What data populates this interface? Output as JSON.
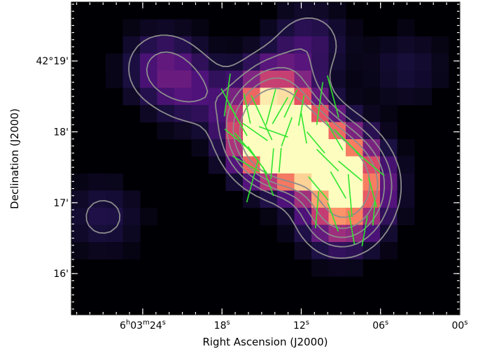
{
  "chart_data": {
    "type": "heatmap",
    "title": "",
    "xlabel": "Right Ascension (J2000)",
    "ylabel": "Declination (J2000)",
    "colormap": "magma",
    "x_ticks": [
      {
        "ra_seconds": 24,
        "label_main": "6",
        "label_h": "h",
        "label_mid": "03",
        "label_m": "m",
        "label_s_val": "24",
        "label_s": "s"
      },
      {
        "ra_seconds": 18,
        "label_main": "18",
        "label_s": "s"
      },
      {
        "ra_seconds": 12,
        "label_main": "12",
        "label_s": "s"
      },
      {
        "ra_seconds": 6,
        "label_main": "06",
        "label_s": "s"
      },
      {
        "ra_seconds": 0,
        "label_main": "00",
        "label_s": "s"
      }
    ],
    "y_ticks": [
      {
        "dec_arcmin": 19,
        "label": "42°19'"
      },
      {
        "dec_arcmin": 18,
        "label": "18'"
      },
      {
        "dec_arcmin": 17,
        "label": "17'"
      },
      {
        "dec_arcmin": 16,
        "label": "16'"
      }
    ],
    "xlim_ra_seconds": [
      29.4,
      0
    ],
    "ylim_dec_arcmin": [
      15.42,
      19.83
    ],
    "grid": false,
    "intensity_peaks": [
      {
        "ra_seconds": 13.5,
        "dec_arcmin": 17.82,
        "level": 1.0
      },
      {
        "ra_seconds": 12.3,
        "dec_arcmin": 17.82,
        "level": 0.92
      },
      {
        "ra_seconds": 14.7,
        "dec_arcmin": 18.05,
        "level": 0.78
      },
      {
        "ra_seconds": 8.4,
        "dec_arcmin": 17.25,
        "level": 0.8
      },
      {
        "ra_seconds": 9.6,
        "dec_arcmin": 17.6,
        "level": 0.68
      },
      {
        "ra_seconds": 13.9,
        "dec_arcmin": 18.55,
        "level": 0.5
      },
      {
        "ra_seconds": 9.0,
        "dec_arcmin": 16.8,
        "level": 0.45
      },
      {
        "ra_seconds": 22.5,
        "dec_arcmin": 18.9,
        "level": 0.28
      },
      {
        "ra_seconds": 11.4,
        "dec_arcmin": 19.25,
        "level": 0.2
      },
      {
        "ra_seconds": 4.0,
        "dec_arcmin": 18.9,
        "level": 0.12
      },
      {
        "ra_seconds": 27.0,
        "dec_arcmin": 16.8,
        "level": 0.15
      },
      {
        "ra_seconds": 20.0,
        "dec_arcmin": 18.55,
        "level": 0.2
      }
    ],
    "contour_color": "#8c8c8c",
    "polarization_vector_color": "#2ee62e",
    "polarization_vectors": [
      {
        "ra_seconds": 17.6,
        "dec_arcmin": 18.52,
        "angle_deg": 8,
        "length": 0.7
      },
      {
        "ra_seconds": 17.4,
        "dec_arcmin": 18.38,
        "angle_deg": -28,
        "length": 0.6
      },
      {
        "ra_seconds": 16.8,
        "dec_arcmin": 18.17,
        "angle_deg": -30,
        "length": 0.6
      },
      {
        "ra_seconds": 16.1,
        "dec_arcmin": 18.33,
        "angle_deg": -12,
        "length": 0.5
      },
      {
        "ra_seconds": 15.0,
        "dec_arcmin": 18.2,
        "angle_deg": -25,
        "length": 0.8
      },
      {
        "ra_seconds": 14.3,
        "dec_arcmin": 18.35,
        "angle_deg": 15,
        "length": 0.6
      },
      {
        "ra_seconds": 13.6,
        "dec_arcmin": 18.3,
        "angle_deg": 30,
        "length": 0.5
      },
      {
        "ra_seconds": 12.8,
        "dec_arcmin": 18.4,
        "angle_deg": 25,
        "length": 0.5
      },
      {
        "ra_seconds": 12.0,
        "dec_arcmin": 18.3,
        "angle_deg": 10,
        "length": 0.5
      },
      {
        "ra_seconds": 10.6,
        "dec_arcmin": 18.4,
        "angle_deg": 8,
        "length": 0.7
      },
      {
        "ra_seconds": 9.6,
        "dec_arcmin": 18.5,
        "angle_deg": -15,
        "length": 0.7
      },
      {
        "ra_seconds": 16.9,
        "dec_arcmin": 17.9,
        "angle_deg": -50,
        "length": 0.5
      },
      {
        "ra_seconds": 16.2,
        "dec_arcmin": 17.8,
        "angle_deg": -40,
        "length": 0.55
      },
      {
        "ra_seconds": 15.5,
        "dec_arcmin": 18.0,
        "angle_deg": -55,
        "length": 0.5
      },
      {
        "ra_seconds": 14.1,
        "dec_arcmin": 18.0,
        "angle_deg": -70,
        "length": 0.5
      },
      {
        "ra_seconds": 13.1,
        "dec_arcmin": 18.0,
        "angle_deg": 20,
        "length": 0.5
      },
      {
        "ra_seconds": 11.8,
        "dec_arcmin": 18.05,
        "angle_deg": -10,
        "length": 0.5
      },
      {
        "ra_seconds": 10.9,
        "dec_arcmin": 17.85,
        "angle_deg": -40,
        "length": 0.45
      },
      {
        "ra_seconds": 9.5,
        "dec_arcmin": 17.95,
        "angle_deg": -30,
        "length": 0.55
      },
      {
        "ra_seconds": 8.5,
        "dec_arcmin": 17.85,
        "angle_deg": -45,
        "length": 0.6
      },
      {
        "ra_seconds": 16.2,
        "dec_arcmin": 17.55,
        "angle_deg": -60,
        "length": 0.5
      },
      {
        "ra_seconds": 15.3,
        "dec_arcmin": 17.6,
        "angle_deg": -35,
        "length": 0.55
      },
      {
        "ra_seconds": 14.2,
        "dec_arcmin": 17.55,
        "angle_deg": 5,
        "length": 0.5
      },
      {
        "ra_seconds": 13.6,
        "dec_arcmin": 17.6,
        "angle_deg": 5,
        "length": 0.4
      },
      {
        "ra_seconds": 10.0,
        "dec_arcmin": 17.6,
        "angle_deg": -45,
        "length": 0.5
      },
      {
        "ra_seconds": 8.3,
        "dec_arcmin": 17.45,
        "angle_deg": -50,
        "length": 0.5
      },
      {
        "ra_seconds": 6.8,
        "dec_arcmin": 17.55,
        "angle_deg": -50,
        "length": 0.6
      },
      {
        "ra_seconds": 15.7,
        "dec_arcmin": 17.3,
        "angle_deg": 15,
        "length": 0.7
      },
      {
        "ra_seconds": 14.5,
        "dec_arcmin": 17.3,
        "angle_deg": -20,
        "length": 0.5
      },
      {
        "ra_seconds": 10.7,
        "dec_arcmin": 17.2,
        "angle_deg": -40,
        "length": 0.5
      },
      {
        "ra_seconds": 9.2,
        "dec_arcmin": 17.25,
        "angle_deg": -30,
        "length": 0.5
      },
      {
        "ra_seconds": 8.3,
        "dec_arcmin": 17.1,
        "angle_deg": -5,
        "length": 0.7
      },
      {
        "ra_seconds": 6.6,
        "dec_arcmin": 17.15,
        "angle_deg": -15,
        "length": 0.5
      },
      {
        "ra_seconds": 10.8,
        "dec_arcmin": 16.9,
        "angle_deg": 5,
        "length": 0.6
      },
      {
        "ra_seconds": 9.6,
        "dec_arcmin": 16.8,
        "angle_deg": -20,
        "length": 0.5
      },
      {
        "ra_seconds": 8.2,
        "dec_arcmin": 16.65,
        "angle_deg": -10,
        "length": 0.55
      },
      {
        "ra_seconds": 7.2,
        "dec_arcmin": 16.6,
        "angle_deg": 10,
        "length": 0.5
      },
      {
        "ra_seconds": 6.5,
        "dec_arcmin": 16.85,
        "angle_deg": 5,
        "length": 0.4
      }
    ]
  }
}
